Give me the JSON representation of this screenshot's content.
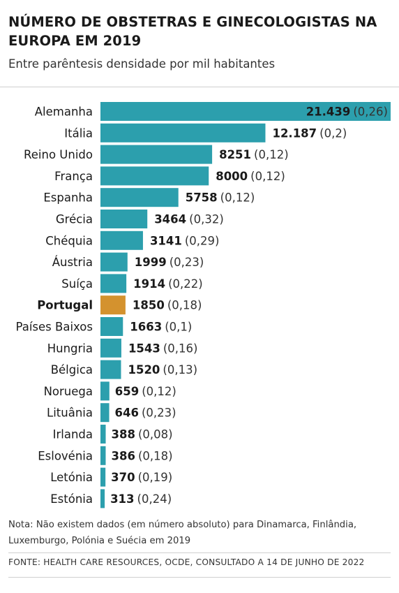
{
  "header": {
    "title": "NÚMERO DE OBSTETRAS E GINECOLOGISTAS NA EUROPA EM 2019",
    "subtitle": "Entre parêntesis densidade por mil habitantes"
  },
  "footer": {
    "note": "Nota: Não existem dados (em número absoluto) para Dinamarca, Finlândia, Luxemburgo, Polónia e Suécia em 2019",
    "source": "FONTE: HEALTH CARE RESOURCES, OCDE, CONSULTADO A 14 DE JUNHO DE 2022"
  },
  "colors": {
    "bar": "#2c9fad",
    "highlight": "#d4922e",
    "text": "#1a1a1a",
    "density_text": "#333333"
  },
  "chart_data": {
    "type": "bar",
    "orientation": "horizontal",
    "highlight_category": "Portugal",
    "categories": [
      "Alemanha",
      "Itália",
      "Reino Unido",
      "França",
      "Espanha",
      "Grécia",
      "Chéquia",
      "Áustria",
      "Suíça",
      "Portugal",
      "Países Baixos",
      "Hungria",
      "Bélgica",
      "Noruega",
      "Lituânia",
      "Irlanda",
      "Eslovénia",
      "Letónia",
      "Estónia"
    ],
    "values": [
      21439,
      12187,
      8251,
      8000,
      5758,
      3464,
      3141,
      1999,
      1914,
      1850,
      1663,
      1543,
      1520,
      659,
      646,
      388,
      386,
      370,
      313
    ],
    "value_labels": [
      "21.439",
      "12.187",
      "8251",
      "8000",
      "5758",
      "3464",
      "3141",
      "1999",
      "1914",
      "1850",
      "1663",
      "1543",
      "1520",
      "659",
      "646",
      "388",
      "386",
      "370",
      "313"
    ],
    "density_labels": [
      "(0,26)",
      "(0,2)",
      "(0,12)",
      "(0,12)",
      "(0,12)",
      "(0,32)",
      "(0,29)",
      "(0,23)",
      "(0,22)",
      "(0,18)",
      "(0,1)",
      "(0,16)",
      "(0,13)",
      "(0,12)",
      "(0,23)",
      "(0,08)",
      "(0,18)",
      "(0,19)",
      "(0,24)"
    ],
    "xlim": [
      0,
      21439
    ]
  }
}
